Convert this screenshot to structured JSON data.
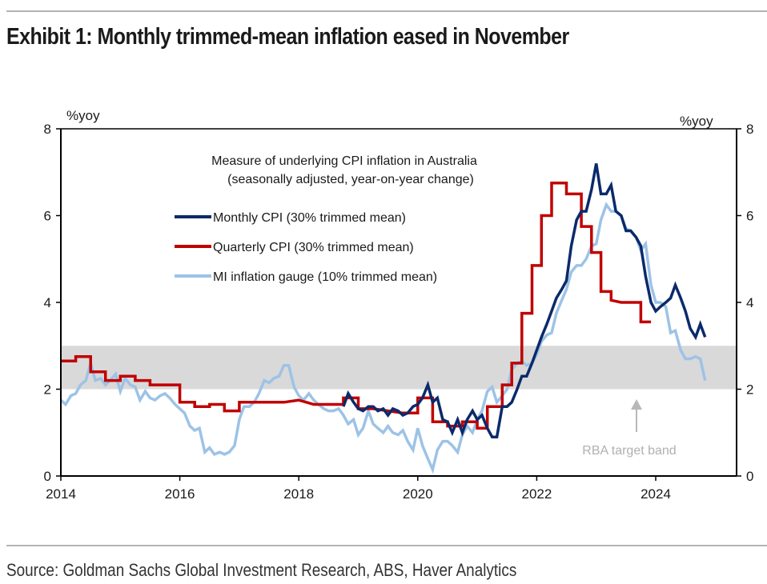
{
  "title": "Exhibit 1: Monthly trimmed-mean inflation eased in November",
  "source": "Source: Goldman Sachs Global Investment Research, ABS, Haver Analytics",
  "chart_data": {
    "type": "line",
    "title": "Measure of underlying CPI inflation in Australia",
    "subtitle": "(seasonally adjusted, year-on-year change)",
    "ylabel_left": "%yoy",
    "ylabel_right": "%yoy",
    "xlim": [
      2014.0,
      2025.25
    ],
    "ylim": [
      0,
      8
    ],
    "yticks": [
      0,
      2,
      4,
      6,
      8
    ],
    "xticks": [
      2014,
      2016,
      2018,
      2020,
      2022,
      2024
    ],
    "xtick_labels": [
      "2014",
      "2016",
      "2018",
      "2020",
      "2022",
      "2024"
    ],
    "grid": false,
    "legend_position": "top-left",
    "shaded_band": {
      "label": "RBA target band",
      "y_from": 2,
      "y_to": 3,
      "color": "#d9d9d9"
    },
    "annotation": {
      "text": "RBA target band",
      "x": 2023.7,
      "y": 0.6,
      "arrow_to_y": 1.8
    },
    "series": [
      {
        "name": "Monthly CPI (30% trimmed mean)",
        "color": "#0b2a6b",
        "step": false,
        "points": [
          [
            2018.75,
            1.6
          ],
          [
            2018.83,
            1.9
          ],
          [
            2018.92,
            1.7
          ],
          [
            2019.0,
            1.55
          ],
          [
            2019.08,
            1.5
          ],
          [
            2019.17,
            1.6
          ],
          [
            2019.25,
            1.6
          ],
          [
            2019.33,
            1.5
          ],
          [
            2019.42,
            1.55
          ],
          [
            2019.5,
            1.4
          ],
          [
            2019.58,
            1.55
          ],
          [
            2019.67,
            1.5
          ],
          [
            2019.75,
            1.4
          ],
          [
            2019.83,
            1.45
          ],
          [
            2019.92,
            1.6
          ],
          [
            2020.0,
            1.65
          ],
          [
            2020.08,
            1.8
          ],
          [
            2020.17,
            2.1
          ],
          [
            2020.25,
            1.7
          ],
          [
            2020.33,
            1.8
          ],
          [
            2020.42,
            1.3
          ],
          [
            2020.5,
            1.25
          ],
          [
            2020.58,
            1.0
          ],
          [
            2020.67,
            1.3
          ],
          [
            2020.75,
            1.0
          ],
          [
            2020.83,
            1.3
          ],
          [
            2020.92,
            1.5
          ],
          [
            2021.0,
            1.3
          ],
          [
            2021.08,
            1.4
          ],
          [
            2021.17,
            1.1
          ],
          [
            2021.25,
            0.9
          ],
          [
            2021.33,
            0.9
          ],
          [
            2021.42,
            1.6
          ],
          [
            2021.5,
            1.6
          ],
          [
            2021.58,
            1.7
          ],
          [
            2021.67,
            2.0
          ],
          [
            2021.75,
            2.3
          ],
          [
            2021.83,
            2.3
          ],
          [
            2021.92,
            2.6
          ],
          [
            2022.0,
            2.9
          ],
          [
            2022.08,
            3.2
          ],
          [
            2022.17,
            3.5
          ],
          [
            2022.25,
            3.8
          ],
          [
            2022.33,
            4.1
          ],
          [
            2022.42,
            4.3
          ],
          [
            2022.5,
            4.5
          ],
          [
            2022.58,
            5.3
          ],
          [
            2022.67,
            5.9
          ],
          [
            2022.75,
            6.1
          ],
          [
            2022.83,
            6.1
          ],
          [
            2022.92,
            6.6
          ],
          [
            2023.0,
            7.2
          ],
          [
            2023.08,
            6.5
          ],
          [
            2023.17,
            6.5
          ],
          [
            2023.25,
            6.7
          ],
          [
            2023.33,
            6.1
          ],
          [
            2023.42,
            6.0
          ],
          [
            2023.5,
            5.65
          ],
          [
            2023.58,
            5.65
          ],
          [
            2023.67,
            5.5
          ],
          [
            2023.75,
            5.3
          ],
          [
            2023.83,
            4.6
          ],
          [
            2023.92,
            4.0
          ],
          [
            2024.0,
            3.8
          ],
          [
            2024.08,
            3.9
          ],
          [
            2024.17,
            4.0
          ],
          [
            2024.25,
            4.1
          ],
          [
            2024.33,
            4.4
          ],
          [
            2024.42,
            4.1
          ],
          [
            2024.5,
            3.8
          ],
          [
            2024.58,
            3.4
          ],
          [
            2024.67,
            3.2
          ],
          [
            2024.75,
            3.5
          ],
          [
            2024.83,
            3.2
          ]
        ]
      },
      {
        "name": "Quarterly CPI (30% trimmed mean)",
        "color": "#c00000",
        "step": true,
        "points": [
          [
            2014.0,
            2.65
          ],
          [
            2014.25,
            2.65
          ],
          [
            2014.25,
            2.75
          ],
          [
            2014.5,
            2.75
          ],
          [
            2014.5,
            2.4
          ],
          [
            2014.75,
            2.4
          ],
          [
            2014.75,
            2.2
          ],
          [
            2015.0,
            2.2
          ],
          [
            2015.0,
            2.3
          ],
          [
            2015.25,
            2.3
          ],
          [
            2015.25,
            2.2
          ],
          [
            2015.5,
            2.2
          ],
          [
            2015.5,
            2.1
          ],
          [
            2016.0,
            2.1
          ],
          [
            2016.0,
            1.7
          ],
          [
            2016.25,
            1.7
          ],
          [
            2016.25,
            1.6
          ],
          [
            2016.5,
            1.6
          ],
          [
            2016.5,
            1.65
          ],
          [
            2016.75,
            1.65
          ],
          [
            2016.75,
            1.5
          ],
          [
            2017.0,
            1.5
          ],
          [
            2017.0,
            1.7
          ],
          [
            2017.25,
            1.7
          ],
          [
            2017.25,
            1.7
          ],
          [
            2017.5,
            1.7
          ],
          [
            2017.5,
            1.7
          ],
          [
            2017.75,
            1.7
          ],
          [
            2018.0,
            1.75
          ],
          [
            2018.25,
            1.65
          ],
          [
            2018.5,
            1.65
          ],
          [
            2018.75,
            1.65
          ],
          [
            2018.75,
            1.8
          ],
          [
            2019.0,
            1.8
          ],
          [
            2019.0,
            1.55
          ],
          [
            2019.25,
            1.55
          ],
          [
            2019.5,
            1.5
          ],
          [
            2019.75,
            1.45
          ],
          [
            2019.75,
            1.45
          ],
          [
            2020.0,
            1.45
          ],
          [
            2020.0,
            1.8
          ],
          [
            2020.25,
            1.8
          ],
          [
            2020.25,
            1.25
          ],
          [
            2020.5,
            1.25
          ],
          [
            2020.5,
            1.15
          ],
          [
            2020.75,
            1.15
          ],
          [
            2020.75,
            1.25
          ],
          [
            2021.0,
            1.25
          ],
          [
            2021.0,
            1.1
          ],
          [
            2021.17,
            1.1
          ],
          [
            2021.17,
            1.6
          ],
          [
            2021.42,
            1.6
          ],
          [
            2021.42,
            2.1
          ],
          [
            2021.58,
            2.1
          ],
          [
            2021.58,
            2.6
          ],
          [
            2021.75,
            2.6
          ],
          [
            2021.75,
            3.75
          ],
          [
            2021.92,
            3.75
          ],
          [
            2021.92,
            4.85
          ],
          [
            2022.08,
            4.85
          ],
          [
            2022.08,
            6.0
          ],
          [
            2022.25,
            6.0
          ],
          [
            2022.25,
            6.75
          ],
          [
            2022.5,
            6.75
          ],
          [
            2022.5,
            6.5
          ],
          [
            2022.75,
            6.5
          ],
          [
            2022.75,
            5.75
          ],
          [
            2022.92,
            5.75
          ],
          [
            2022.92,
            5.15
          ],
          [
            2023.08,
            5.15
          ],
          [
            2023.08,
            4.25
          ],
          [
            2023.25,
            4.25
          ],
          [
            2023.25,
            4.05
          ],
          [
            2023.42,
            4.0
          ],
          [
            2023.75,
            4.0
          ],
          [
            2023.75,
            3.55
          ],
          [
            2023.92,
            3.55
          ]
        ]
      },
      {
        "name": "MI inflation gauge (10% trimmed mean)",
        "color": "#9dc3e6",
        "step": false,
        "points": [
          [
            2014.0,
            1.75
          ],
          [
            2014.08,
            1.65
          ],
          [
            2014.17,
            1.85
          ],
          [
            2014.25,
            1.9
          ],
          [
            2014.33,
            2.1
          ],
          [
            2014.42,
            2.2
          ],
          [
            2014.5,
            2.6
          ],
          [
            2014.58,
            2.2
          ],
          [
            2014.67,
            2.25
          ],
          [
            2014.75,
            2.1
          ],
          [
            2014.83,
            2.2
          ],
          [
            2014.92,
            2.35
          ],
          [
            2015.0,
            1.95
          ],
          [
            2015.08,
            2.25
          ],
          [
            2015.17,
            2.1
          ],
          [
            2015.25,
            2.05
          ],
          [
            2015.33,
            1.75
          ],
          [
            2015.42,
            1.95
          ],
          [
            2015.5,
            1.8
          ],
          [
            2015.58,
            1.75
          ],
          [
            2015.67,
            1.85
          ],
          [
            2015.75,
            1.9
          ],
          [
            2015.83,
            1.8
          ],
          [
            2015.92,
            1.65
          ],
          [
            2016.0,
            1.55
          ],
          [
            2016.08,
            1.45
          ],
          [
            2016.17,
            1.15
          ],
          [
            2016.25,
            1.05
          ],
          [
            2016.33,
            1.1
          ],
          [
            2016.42,
            0.55
          ],
          [
            2016.5,
            0.65
          ],
          [
            2016.58,
            0.5
          ],
          [
            2016.67,
            0.55
          ],
          [
            2016.75,
            0.5
          ],
          [
            2016.83,
            0.55
          ],
          [
            2016.92,
            0.7
          ],
          [
            2017.0,
            1.3
          ],
          [
            2017.08,
            1.6
          ],
          [
            2017.17,
            1.6
          ],
          [
            2017.25,
            1.7
          ],
          [
            2017.33,
            1.9
          ],
          [
            2017.42,
            2.2
          ],
          [
            2017.5,
            2.15
          ],
          [
            2017.58,
            2.25
          ],
          [
            2017.67,
            2.3
          ],
          [
            2017.75,
            2.55
          ],
          [
            2017.83,
            2.55
          ],
          [
            2017.92,
            2.05
          ],
          [
            2018.0,
            1.85
          ],
          [
            2018.08,
            1.75
          ],
          [
            2018.17,
            1.9
          ],
          [
            2018.25,
            1.75
          ],
          [
            2018.33,
            1.65
          ],
          [
            2018.42,
            1.55
          ],
          [
            2018.5,
            1.5
          ],
          [
            2018.58,
            1.5
          ],
          [
            2018.67,
            1.55
          ],
          [
            2018.75,
            1.4
          ],
          [
            2018.83,
            1.2
          ],
          [
            2018.92,
            1.3
          ],
          [
            2019.0,
            0.95
          ],
          [
            2019.08,
            1.1
          ],
          [
            2019.17,
            1.5
          ],
          [
            2019.25,
            1.2
          ],
          [
            2019.33,
            1.1
          ],
          [
            2019.42,
            1.0
          ],
          [
            2019.5,
            1.15
          ],
          [
            2019.58,
            1.0
          ],
          [
            2019.67,
            0.95
          ],
          [
            2019.75,
            1.05
          ],
          [
            2019.83,
            0.8
          ],
          [
            2019.92,
            0.6
          ],
          [
            2020.0,
            1.1
          ],
          [
            2020.08,
            0.7
          ],
          [
            2020.17,
            0.4
          ],
          [
            2020.25,
            0.15
          ],
          [
            2020.33,
            0.6
          ],
          [
            2020.42,
            0.8
          ],
          [
            2020.5,
            0.8
          ],
          [
            2020.58,
            0.7
          ],
          [
            2020.67,
            0.55
          ],
          [
            2020.75,
            0.95
          ],
          [
            2020.83,
            1.15
          ],
          [
            2020.92,
            1.0
          ],
          [
            2021.0,
            1.3
          ],
          [
            2021.08,
            1.5
          ],
          [
            2021.17,
            1.95
          ],
          [
            2021.25,
            2.05
          ],
          [
            2021.33,
            1.7
          ],
          [
            2021.42,
            1.85
          ],
          [
            2021.5,
            2.0
          ],
          [
            2021.58,
            2.45
          ],
          [
            2021.67,
            2.6
          ],
          [
            2021.75,
            2.65
          ],
          [
            2021.83,
            2.55
          ],
          [
            2021.92,
            2.6
          ],
          [
            2022.0,
            2.8
          ],
          [
            2022.08,
            3.1
          ],
          [
            2022.17,
            3.25
          ],
          [
            2022.25,
            3.3
          ],
          [
            2022.33,
            3.75
          ],
          [
            2022.42,
            4.05
          ],
          [
            2022.5,
            4.3
          ],
          [
            2022.58,
            4.7
          ],
          [
            2022.67,
            4.85
          ],
          [
            2022.75,
            4.85
          ],
          [
            2022.83,
            5.0
          ],
          [
            2022.92,
            5.3
          ],
          [
            2023.0,
            5.35
          ],
          [
            2023.08,
            5.9
          ],
          [
            2023.17,
            6.25
          ],
          [
            2023.25,
            6.1
          ],
          [
            2023.33,
            6.1
          ],
          [
            2023.42,
            6.0
          ],
          [
            2023.5,
            5.7
          ],
          [
            2023.58,
            5.65
          ],
          [
            2023.67,
            5.5
          ],
          [
            2023.75,
            5.2
          ],
          [
            2023.83,
            5.35
          ],
          [
            2023.92,
            4.4
          ],
          [
            2024.0,
            4.0
          ],
          [
            2024.08,
            4.0
          ],
          [
            2024.17,
            3.9
          ],
          [
            2024.25,
            3.3
          ],
          [
            2024.33,
            3.35
          ],
          [
            2024.42,
            2.9
          ],
          [
            2024.5,
            2.7
          ],
          [
            2024.58,
            2.7
          ],
          [
            2024.67,
            2.75
          ],
          [
            2024.75,
            2.7
          ],
          [
            2024.83,
            2.2
          ]
        ]
      }
    ]
  }
}
